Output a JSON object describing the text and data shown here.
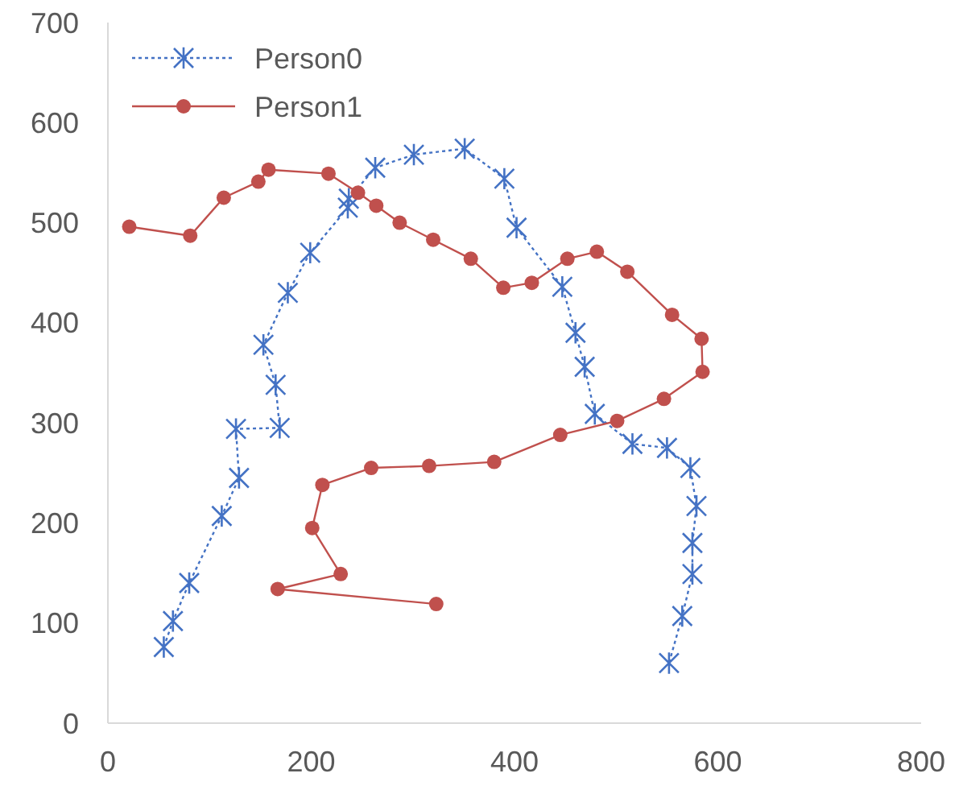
{
  "chart_data": {
    "type": "line",
    "xlim": [
      0,
      800
    ],
    "xticks": [
      0,
      200,
      400,
      600,
      800
    ],
    "ylim": [
      0,
      700
    ],
    "yticks": [
      0,
      100,
      200,
      300,
      400,
      500,
      600,
      700
    ],
    "grid": false,
    "legend": "top left",
    "series": [
      {
        "name": "Person0",
        "color": "#4472c4",
        "marker": "cross",
        "line_style": "dotted",
        "x": [
          55,
          64,
          80,
          112,
          129,
          126,
          169,
          165,
          153,
          177,
          199,
          236,
          237,
          263,
          301,
          351,
          390,
          402,
          447,
          460,
          469,
          479,
          516,
          550,
          573,
          579,
          575,
          575,
          565,
          552
        ],
        "values": [
          76,
          102,
          140,
          207,
          245,
          294,
          295,
          338,
          378,
          430,
          470,
          515,
          524,
          555,
          568,
          574,
          544,
          495,
          436,
          390,
          356,
          309,
          279,
          275,
          255,
          217,
          180,
          149,
          107,
          60
        ]
      },
      {
        "name": "Person1",
        "color": "#c0504d",
        "marker": "circle",
        "line_style": "solid",
        "x": [
          21,
          81,
          114,
          148,
          158,
          217,
          246,
          264,
          287,
          320,
          357,
          389,
          417,
          452,
          481,
          511,
          555,
          584,
          585,
          547,
          501,
          445,
          380,
          316,
          259,
          211,
          201,
          229,
          167,
          323
        ],
        "values": [
          496,
          487,
          525,
          541,
          553,
          549,
          530,
          517,
          500,
          483,
          464,
          435,
          440,
          464,
          471,
          451,
          408,
          384,
          351,
          324,
          302,
          288,
          261,
          257,
          255,
          238,
          195,
          149,
          134,
          119
        ]
      }
    ]
  }
}
